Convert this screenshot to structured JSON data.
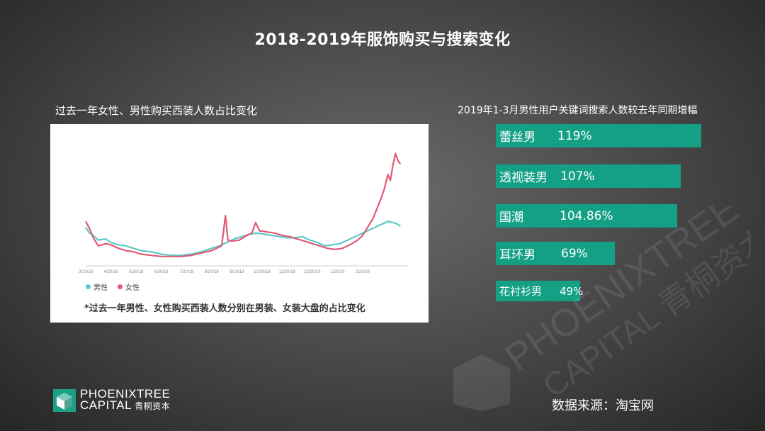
{
  "title": "2018-2019年服饰购买与搜索变化",
  "left_panel": {
    "title": "过去一年女性、男性购买西装人数占比变化",
    "note": "*过去一年男性、女性购买西装人数分别在男装、女装大盘的占比变化"
  },
  "chart_data": [
    {
      "type": "line",
      "title": "",
      "x": [
        "3/20/18",
        "4/20/18",
        "5/20/18",
        "6/20/18",
        "7/20/18",
        "8/20/18",
        "9/20/18",
        "10/20/18",
        "11/20/18",
        "12/20/18",
        "1/20/19",
        "2/20/19"
      ],
      "x_range": [
        0,
        12.8
      ],
      "ylim": [
        0,
        100
      ],
      "legend": "bottom-left",
      "series": [
        {
          "name": "男性",
          "color": "#5cc9c9",
          "points": [
            [
              0,
              33
            ],
            [
              0.15,
              28
            ],
            [
              0.3,
              26
            ],
            [
              0.5,
              22
            ],
            [
              0.8,
              23
            ],
            [
              1.0,
              20
            ],
            [
              1.3,
              18
            ],
            [
              1.6,
              17
            ],
            [
              1.9,
              15
            ],
            [
              2.2,
              13
            ],
            [
              2.6,
              12
            ],
            [
              3.0,
              10
            ],
            [
              3.4,
              9
            ],
            [
              3.8,
              9
            ],
            [
              4.2,
              10
            ],
            [
              4.6,
              12
            ],
            [
              5.0,
              15
            ],
            [
              5.3,
              17
            ],
            [
              5.6,
              20
            ],
            [
              5.9,
              23
            ],
            [
              6.2,
              25
            ],
            [
              6.5,
              27
            ],
            [
              6.8,
              28
            ],
            [
              7.1,
              27
            ],
            [
              7.4,
              26
            ],
            [
              7.7,
              25
            ],
            [
              8.0,
              24
            ],
            [
              8.3,
              24
            ],
            [
              8.6,
              25
            ],
            [
              8.9,
              22
            ],
            [
              9.2,
              20
            ],
            [
              9.5,
              17
            ],
            [
              9.8,
              18
            ],
            [
              10.1,
              19
            ],
            [
              10.4,
              22
            ],
            [
              10.7,
              25
            ],
            [
              11.0,
              28
            ],
            [
              11.3,
              31
            ],
            [
              11.6,
              34
            ],
            [
              11.8,
              36
            ],
            [
              12.0,
              38
            ],
            [
              12.2,
              37
            ],
            [
              12.35,
              36
            ],
            [
              12.5,
              34
            ]
          ]
        },
        {
          "name": "女性",
          "color": "#e05a75",
          "points": [
            [
              0,
              38
            ],
            [
              0.15,
              32
            ],
            [
              0.3,
              24
            ],
            [
              0.5,
              17
            ],
            [
              0.8,
              19
            ],
            [
              1.0,
              18
            ],
            [
              1.3,
              15
            ],
            [
              1.6,
              13
            ],
            [
              1.9,
              12
            ],
            [
              2.2,
              10
            ],
            [
              2.6,
              9
            ],
            [
              3.0,
              8
            ],
            [
              3.4,
              8
            ],
            [
              3.8,
              8
            ],
            [
              4.2,
              9
            ],
            [
              4.6,
              11
            ],
            [
              5.0,
              13
            ],
            [
              5.2,
              15
            ],
            [
              5.4,
              17
            ],
            [
              5.55,
              43
            ],
            [
              5.65,
              22
            ],
            [
              5.8,
              21
            ],
            [
              6.1,
              22
            ],
            [
              6.4,
              26
            ],
            [
              6.6,
              28
            ],
            [
              6.75,
              37
            ],
            [
              6.9,
              30
            ],
            [
              7.2,
              29
            ],
            [
              7.5,
              28
            ],
            [
              7.8,
              26
            ],
            [
              8.1,
              25
            ],
            [
              8.4,
              23
            ],
            [
              8.7,
              21
            ],
            [
              9.0,
              19
            ],
            [
              9.3,
              17
            ],
            [
              9.6,
              15
            ],
            [
              9.9,
              14
            ],
            [
              10.2,
              15
            ],
            [
              10.5,
              18
            ],
            [
              10.8,
              22
            ],
            [
              11.0,
              26
            ],
            [
              11.2,
              33
            ],
            [
              11.4,
              40
            ],
            [
              11.55,
              48
            ],
            [
              11.7,
              56
            ],
            [
              11.85,
              65
            ],
            [
              12.0,
              78
            ],
            [
              12.1,
              73
            ],
            [
              12.2,
              86
            ],
            [
              12.3,
              96
            ],
            [
              12.4,
              90
            ],
            [
              12.5,
              87
            ]
          ]
        }
      ]
    },
    {
      "type": "bar",
      "title": "2019年1-3月男性用户关键词搜索人数较去年同期增幅",
      "orientation": "horizontal",
      "categories": [
        "蕾丝男",
        "透视装男",
        "国潮",
        "耳环男",
        "花衬衫男"
      ],
      "values": [
        119,
        107,
        104.86,
        69,
        49
      ],
      "value_labels": [
        "119%",
        "107%",
        "104.86%",
        "69%",
        "49%"
      ],
      "color": "#14a085"
    }
  ],
  "source": "数据来源：淘宝网",
  "logo": {
    "line1": "PHOENIXTREE",
    "line2": "CAPITAL",
    "cn": "青桐资本"
  },
  "watermark": {
    "line1": "PHOENIXTREE",
    "line2": "CAPITAL 青桐资本"
  }
}
